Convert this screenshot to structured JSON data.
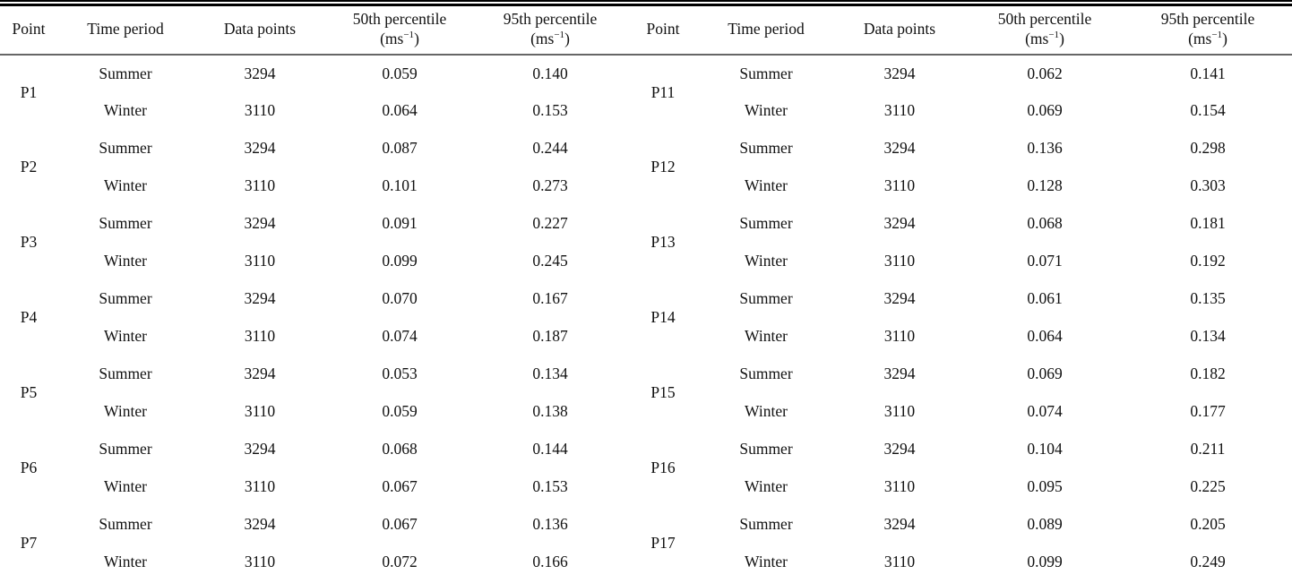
{
  "page": {
    "background": "#ffffff",
    "text_color": "#111111",
    "top_rule_color": "#000000",
    "header_rule_color": "#666666"
  },
  "table": {
    "headers": {
      "point": "Point",
      "time_period": "Time period",
      "data_points": "Data points",
      "p50": "50th percentile",
      "p95": "95th percentile",
      "unit_prefix": "(ms",
      "unit_sup": "−1",
      "unit_suffix": ")"
    },
    "left_groups": [
      {
        "point": "P1",
        "rows": [
          {
            "season": "Summer",
            "n": "3294",
            "p50": "0.059",
            "p95": "0.140"
          },
          {
            "season": "Winter",
            "n": "3110",
            "p50": "0.064",
            "p95": "0.153"
          }
        ]
      },
      {
        "point": "P2",
        "rows": [
          {
            "season": "Summer",
            "n": "3294",
            "p50": "0.087",
            "p95": "0.244"
          },
          {
            "season": "Winter",
            "n": "3110",
            "p50": "0.101",
            "p95": "0.273"
          }
        ]
      },
      {
        "point": "P3",
        "rows": [
          {
            "season": "Summer",
            "n": "3294",
            "p50": "0.091",
            "p95": "0.227"
          },
          {
            "season": "Winter",
            "n": "3110",
            "p50": "0.099",
            "p95": "0.245"
          }
        ]
      },
      {
        "point": "P4",
        "rows": [
          {
            "season": "Summer",
            "n": "3294",
            "p50": "0.070",
            "p95": "0.167"
          },
          {
            "season": "Winter",
            "n": "3110",
            "p50": "0.074",
            "p95": "0.187"
          }
        ]
      },
      {
        "point": "P5",
        "rows": [
          {
            "season": "Summer",
            "n": "3294",
            "p50": "0.053",
            "p95": "0.134"
          },
          {
            "season": "Winter",
            "n": "3110",
            "p50": "0.059",
            "p95": "0.138"
          }
        ]
      },
      {
        "point": "P6",
        "rows": [
          {
            "season": "Summer",
            "n": "3294",
            "p50": "0.068",
            "p95": "0.144"
          },
          {
            "season": "Winter",
            "n": "3110",
            "p50": "0.067",
            "p95": "0.153"
          }
        ]
      },
      {
        "point": "P7",
        "rows": [
          {
            "season": "Summer",
            "n": "3294",
            "p50": "0.067",
            "p95": "0.136"
          },
          {
            "season": "Winter",
            "n": "3110",
            "p50": "0.072",
            "p95": "0.166"
          }
        ]
      }
    ],
    "right_groups": [
      {
        "point": "P11",
        "rows": [
          {
            "season": "Summer",
            "n": "3294",
            "p50": "0.062",
            "p95": "0.141"
          },
          {
            "season": "Winter",
            "n": "3110",
            "p50": "0.069",
            "p95": "0.154"
          }
        ]
      },
      {
        "point": "P12",
        "rows": [
          {
            "season": "Summer",
            "n": "3294",
            "p50": "0.136",
            "p95": "0.298"
          },
          {
            "season": "Winter",
            "n": "3110",
            "p50": "0.128",
            "p95": "0.303"
          }
        ]
      },
      {
        "point": "P13",
        "rows": [
          {
            "season": "Summer",
            "n": "3294",
            "p50": "0.068",
            "p95": "0.181"
          },
          {
            "season": "Winter",
            "n": "3110",
            "p50": "0.071",
            "p95": "0.192"
          }
        ]
      },
      {
        "point": "P14",
        "rows": [
          {
            "season": "Summer",
            "n": "3294",
            "p50": "0.061",
            "p95": "0.135"
          },
          {
            "season": "Winter",
            "n": "3110",
            "p50": "0.064",
            "p95": "0.134"
          }
        ]
      },
      {
        "point": "P15",
        "rows": [
          {
            "season": "Summer",
            "n": "3294",
            "p50": "0.069",
            "p95": "0.182"
          },
          {
            "season": "Winter",
            "n": "3110",
            "p50": "0.074",
            "p95": "0.177"
          }
        ]
      },
      {
        "point": "P16",
        "rows": [
          {
            "season": "Summer",
            "n": "3294",
            "p50": "0.104",
            "p95": "0.211"
          },
          {
            "season": "Winter",
            "n": "3110",
            "p50": "0.095",
            "p95": "0.225"
          }
        ]
      },
      {
        "point": "P17",
        "rows": [
          {
            "season": "Summer",
            "n": "3294",
            "p50": "0.089",
            "p95": "0.205"
          },
          {
            "season": "Winter",
            "n": "3110",
            "p50": "0.099",
            "p95": "0.249"
          }
        ]
      }
    ]
  }
}
